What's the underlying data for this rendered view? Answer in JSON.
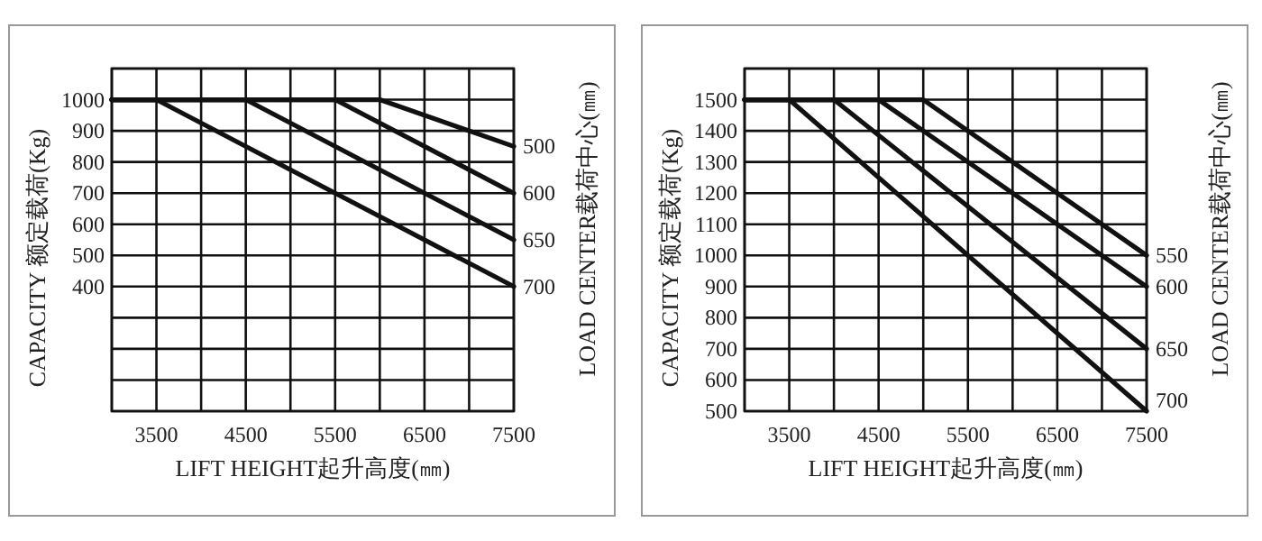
{
  "chart_data": [
    {
      "type": "line",
      "xlabel": "LIFT HEIGHT起升高度(㎜)",
      "ylabel": "CAPACITY  额定载荷(Kg)",
      "y2label": "LOAD CENTER载荷中心(㎜)",
      "xlim": [
        3000,
        7500
      ],
      "ylim": [
        0,
        1100
      ],
      "xticks": [
        {
          "value": 3000,
          "label": null
        },
        3500,
        {
          "value": 4000,
          "label": null
        },
        4500,
        {
          "value": 5000,
          "label": null
        },
        5500,
        {
          "value": 6000,
          "label": null
        },
        6500,
        {
          "value": 7000,
          "label": null
        },
        7500
      ],
      "yticks": [
        {
          "value": 0,
          "label": null
        },
        {
          "value": 100,
          "label": null
        },
        {
          "value": 200,
          "label": null
        },
        {
          "value": 300,
          "label": null
        },
        400,
        500,
        600,
        700,
        800,
        900,
        1000,
        {
          "value": 1100,
          "label": null
        }
      ],
      "grid": true,
      "line_style": "solid",
      "series": [
        {
          "name": "500",
          "color": "#111111",
          "x": [
            3000,
            6000,
            7500
          ],
          "values": [
            1000,
            1000,
            850
          ]
        },
        {
          "name": "600",
          "color": "#111111",
          "x": [
            3000,
            5500,
            7500
          ],
          "values": [
            1000,
            1000,
            700
          ]
        },
        {
          "name": "650",
          "color": "#111111",
          "x": [
            3000,
            4500,
            7500
          ],
          "values": [
            1000,
            1000,
            550
          ]
        },
        {
          "name": "700",
          "color": "#111111",
          "x": [
            3000,
            3500,
            7500
          ],
          "values": [
            1000,
            1000,
            400
          ]
        }
      ]
    },
    {
      "type": "line",
      "xlabel": "LIFT HEIGHT起升高度(㎜)",
      "ylabel": "CAPACITY  额定载荷(Kg)",
      "y2label": "LOAD CENTER载荷中心(㎜)",
      "xlim": [
        3000,
        7500
      ],
      "ylim": [
        500,
        1600
      ],
      "xticks": [
        {
          "value": 3000,
          "label": null
        },
        3500,
        {
          "value": 4000,
          "label": null
        },
        4500,
        {
          "value": 5000,
          "label": null
        },
        5500,
        {
          "value": 6000,
          "label": null
        },
        6500,
        {
          "value": 7000,
          "label": null
        },
        7500
      ],
      "yticks": [
        500,
        600,
        700,
        800,
        900,
        1000,
        1100,
        1200,
        1300,
        1400,
        1500,
        {
          "value": 1600,
          "label": null
        }
      ],
      "grid": true,
      "line_style": "solid",
      "series": [
        {
          "name": "550",
          "color": "#111111",
          "x": [
            3000,
            5000,
            7500
          ],
          "values": [
            1500,
            1500,
            1000
          ]
        },
        {
          "name": "600",
          "color": "#111111",
          "x": [
            3000,
            4500,
            7500
          ],
          "values": [
            1500,
            1500,
            900
          ]
        },
        {
          "name": "650",
          "color": "#111111",
          "x": [
            3000,
            4000,
            7500
          ],
          "values": [
            1500,
            1500,
            700
          ]
        },
        {
          "name": "700",
          "color": "#111111",
          "x": [
            3000,
            3500,
            7500
          ],
          "values": [
            1500,
            1500,
            500
          ]
        }
      ]
    }
  ]
}
